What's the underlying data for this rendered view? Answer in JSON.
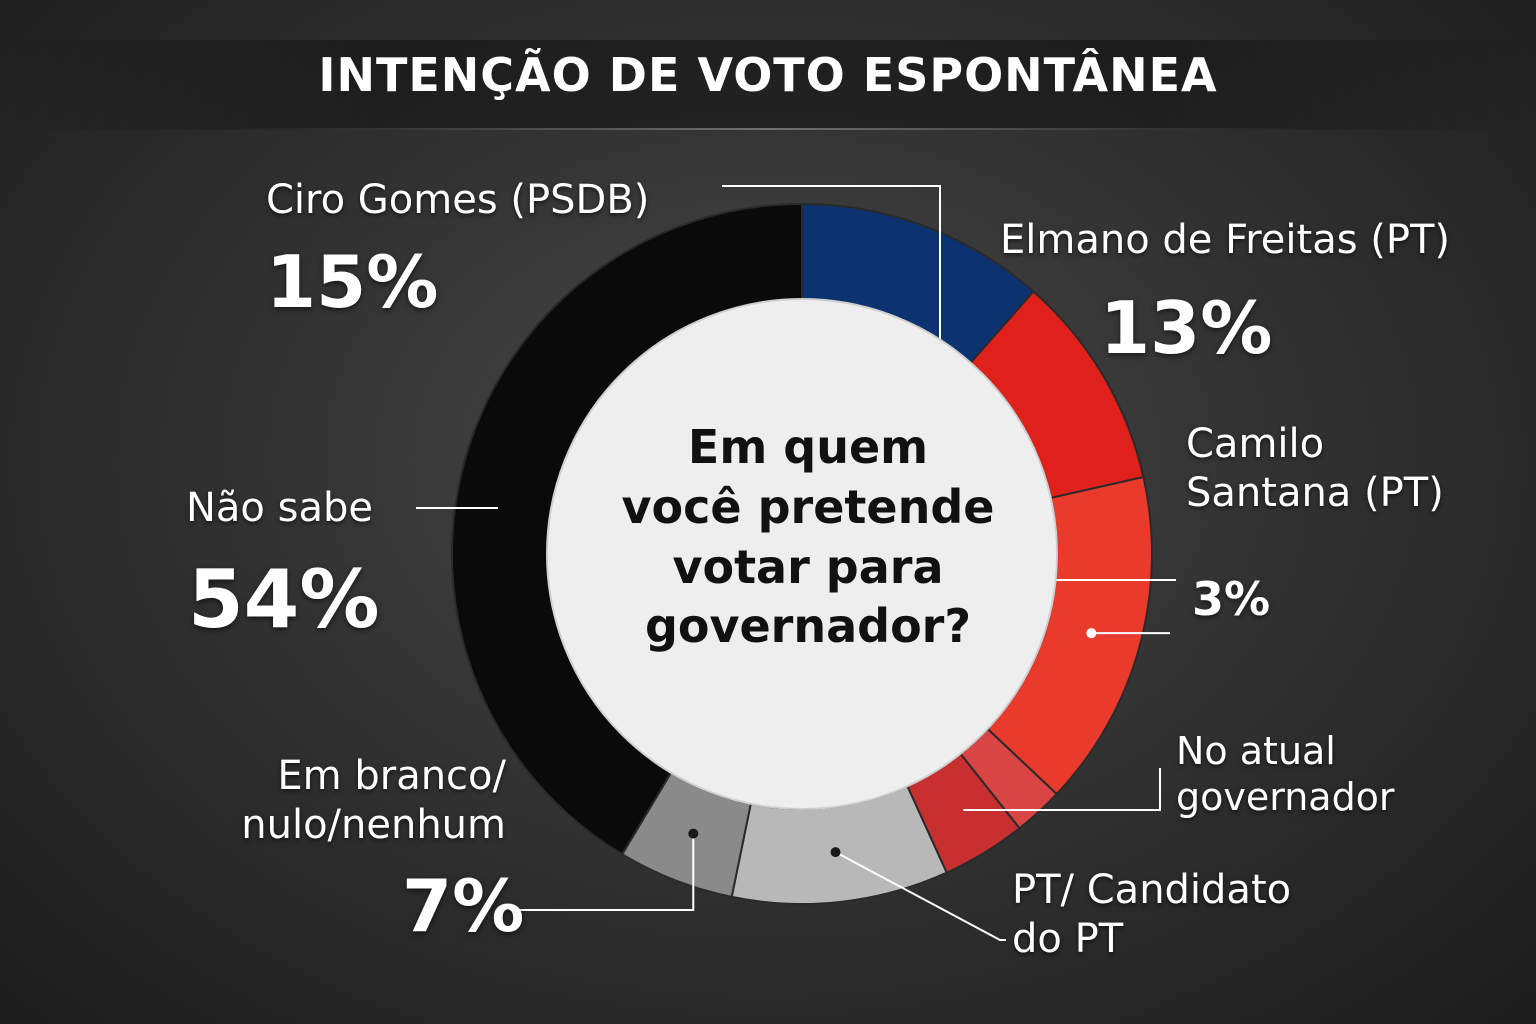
{
  "title": "INTENÇÃO DE VOTO ESPONTÂNEA",
  "center_question": "Em quem\nvocê pretende\nvotar para\ngovernador?",
  "colors": {
    "background": "#2b2b2b",
    "psdb": "#0d3270",
    "pt_dark_red": "#e0201a",
    "pt_red": "#ea3a2c",
    "pt_light_red": "#d94444",
    "grey_dark": "#7a7a7a",
    "grey_mid": "#9b9b9b",
    "grey_light": "#bbbbbb",
    "black": "#0a0a0a",
    "center": "#eeeeee"
  },
  "labels": {
    "ciro": {
      "name": "Ciro Gomes (PSDB)",
      "value": "15%"
    },
    "elmano": {
      "name": "Elmano de Freitas (PT)",
      "value": "13%"
    },
    "camilo": {
      "name": "Camilo\nSantana (PT)",
      "value": "3%"
    },
    "atual": {
      "name": "No atual\ngovernador"
    },
    "pt": {
      "name": "PT/ Candidato\ndo PT"
    },
    "branco": {
      "name": "Em branco/\nnulo/nenhum",
      "value": "7%"
    },
    "naosabe": {
      "name": "Não sabe",
      "value": "54%"
    }
  },
  "chart_data": {
    "type": "pie",
    "title": "INTENÇÃO DE VOTO ESPONTÂNEA",
    "slices": [
      {
        "label": "Ciro Gomes (PSDB)",
        "value": 15,
        "color": "#0d3270"
      },
      {
        "label": "Elmano de Freitas (PT)",
        "value": 13,
        "color": "#e0201a"
      },
      {
        "label": "Camilo Santana (PT)",
        "value": null,
        "color": "#ea3a2c"
      },
      {
        "label": "3%",
        "value": 3,
        "color": "#d94444"
      },
      {
        "label": "No atual governador",
        "value": null,
        "color": "#c83030"
      },
      {
        "label": "PT/ Candidato do PT",
        "value": null,
        "color": "#b8b8b8"
      },
      {
        "label": "Em branco/nulo/nenhum",
        "value": 7,
        "color": "#8a8a8a"
      },
      {
        "label": "Não sabe",
        "value": 54,
        "color": "#0a0a0a"
      }
    ]
  }
}
